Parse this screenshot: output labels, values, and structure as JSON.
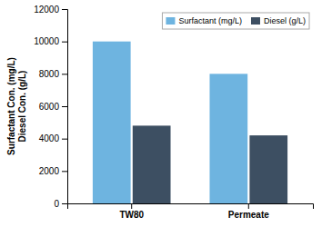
{
  "chart_data": {
    "type": "bar",
    "categories": [
      "TW80",
      "Permeate"
    ],
    "series": [
      {
        "name": "Surfactant (mg/L)",
        "color": "#6EB4E0",
        "values": [
          10000,
          8000
        ]
      },
      {
        "name": "Diesel (g/L)",
        "color": "#3D4F62",
        "values": [
          4800,
          4200
        ]
      }
    ],
    "y_label": "Surfactant Con. (mg/L)\nDiesel Con. (g/L)",
    "ylim": [
      0,
      12000
    ],
    "yticks": [
      0,
      2000,
      4000,
      6000,
      8000,
      10000,
      12000
    ],
    "grid": false,
    "legend": "upper right"
  }
}
